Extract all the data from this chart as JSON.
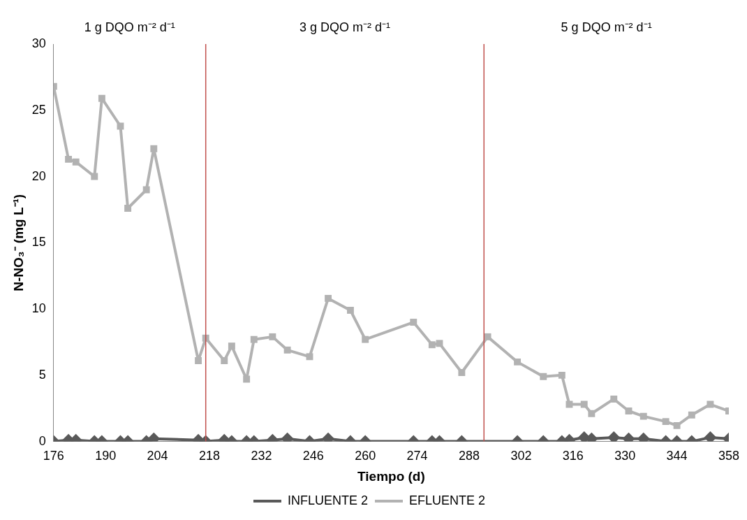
{
  "chart_data": {
    "type": "line",
    "xlabel": "Tiempo (d)",
    "ylabel": "N-NO₃⁻ (mg L⁻¹)",
    "xlim": [
      176,
      358
    ],
    "xticks": [
      176,
      190,
      204,
      218,
      232,
      246,
      260,
      274,
      288,
      302,
      316,
      330,
      344,
      358
    ],
    "ylim": [
      0,
      30
    ],
    "yticks": [
      0,
      5,
      10,
      15,
      20,
      25,
      30
    ],
    "grid": false,
    "legend": "bottom",
    "line_style": "solid",
    "series": [
      {
        "name": "INFLUENTE 2",
        "color": "#595959",
        "marker": "diamond",
        "x": [
          176,
          180,
          182,
          187,
          189,
          194,
          196,
          201,
          203,
          215,
          217,
          222,
          224,
          228,
          230,
          235,
          239,
          245,
          250,
          256,
          260,
          273,
          278,
          280,
          286,
          301,
          308,
          313,
          315,
          319,
          321,
          327,
          331,
          335,
          341,
          344,
          348,
          353,
          358
        ],
        "values": [
          0,
          0.1,
          0.1,
          0,
          0,
          0,
          0,
          0,
          0.2,
          0.1,
          0,
          0.1,
          0,
          0,
          0,
          0.1,
          0.2,
          0,
          0.2,
          0,
          0,
          0,
          0,
          0,
          0,
          0,
          0,
          0,
          0.1,
          0.3,
          0.2,
          0.3,
          0.2,
          0.2,
          0,
          0,
          0,
          0.3,
          0.2
        ]
      },
      {
        "name": "EFLUENTE 2",
        "color": "#b2b2b2",
        "marker": "square",
        "x": [
          176,
          180,
          182,
          187,
          189,
          194,
          196,
          201,
          203,
          215,
          217,
          222,
          224,
          228,
          230,
          235,
          239,
          245,
          250,
          256,
          260,
          273,
          278,
          280,
          286,
          293,
          301,
          308,
          313,
          315,
          319,
          321,
          327,
          331,
          335,
          341,
          344,
          348,
          353,
          358
        ],
        "values": [
          26.8,
          21.3,
          21.1,
          20.0,
          25.9,
          23.8,
          17.6,
          19.0,
          22.1,
          6.1,
          7.8,
          6.1,
          7.2,
          4.7,
          7.7,
          7.9,
          6.9,
          6.4,
          10.8,
          9.9,
          7.7,
          9.0,
          7.3,
          7.4,
          5.2,
          7.9,
          6.0,
          4.9,
          5.0,
          2.8,
          2.8,
          2.1,
          3.2,
          2.3,
          1.9,
          1.5,
          1.2,
          2.0,
          2.8,
          2.3
        ]
      }
    ],
    "ref_lines": [
      {
        "axis": "x",
        "value": 217,
        "color": "#c0504d"
      },
      {
        "axis": "x",
        "value": 292,
        "color": "#c0504d"
      }
    ],
    "annotations": [
      "1 g DQO m⁻² d⁻¹",
      "3 g DQO m⁻² d⁻¹",
      "5 g DQO m⁻² d⁻¹"
    ]
  }
}
